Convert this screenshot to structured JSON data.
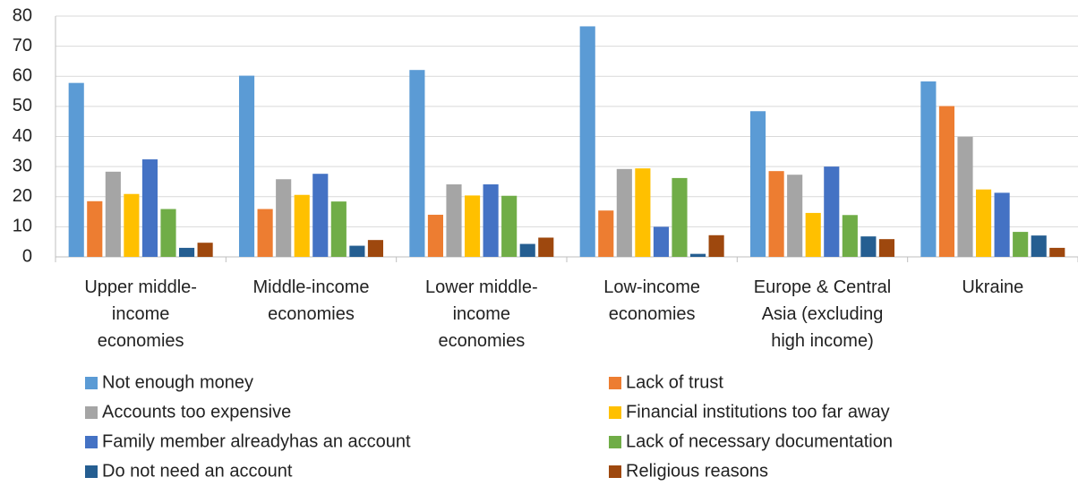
{
  "chart_data": {
    "type": "bar",
    "categories": [
      "Upper middle-income economies",
      "Middle-income economies",
      "Lower middle-income economies",
      "Low-income economies",
      "Europe & Central Asia (excluding high income)",
      "Ukraine"
    ],
    "series": [
      {
        "name": "Not enough money",
        "color": "#5b9bd5",
        "values": [
          57.8,
          60.2,
          62.1,
          76.6,
          48.4,
          58.3
        ]
      },
      {
        "name": "Lack of trust",
        "color": "#ed7d31",
        "values": [
          18.5,
          15.9,
          14.0,
          15.4,
          28.5,
          50.1
        ]
      },
      {
        "name": "Accounts too expensive",
        "color": "#a5a5a5",
        "values": [
          28.3,
          25.8,
          24.1,
          29.2,
          27.3,
          39.9
        ]
      },
      {
        "name": "Financial institutions too far away",
        "color": "#ffc000",
        "values": [
          20.9,
          20.6,
          20.4,
          29.4,
          14.6,
          22.4
        ]
      },
      {
        "name": "Family member alreadyhas an account",
        "color": "#4472c4",
        "values": [
          32.4,
          27.6,
          24.1,
          10.0,
          30.0,
          21.3
        ]
      },
      {
        "name": "Lack of necessary documentation",
        "color": "#70ad47",
        "values": [
          15.9,
          18.4,
          20.3,
          26.2,
          13.9,
          8.3
        ]
      },
      {
        "name": "Do not need an account",
        "color": "#255e91",
        "values": [
          3.0,
          3.7,
          4.3,
          1.0,
          6.8,
          7.1
        ]
      },
      {
        "name": "Religious reasons",
        "color": "#9e480e",
        "values": [
          4.7,
          5.6,
          6.4,
          7.2,
          5.9,
          3.0
        ]
      }
    ],
    "ylim": [
      0,
      80
    ],
    "yticks": [
      0,
      10,
      20,
      30,
      40,
      50,
      60,
      70,
      80
    ],
    "grid": true,
    "legend": "bottom"
  }
}
